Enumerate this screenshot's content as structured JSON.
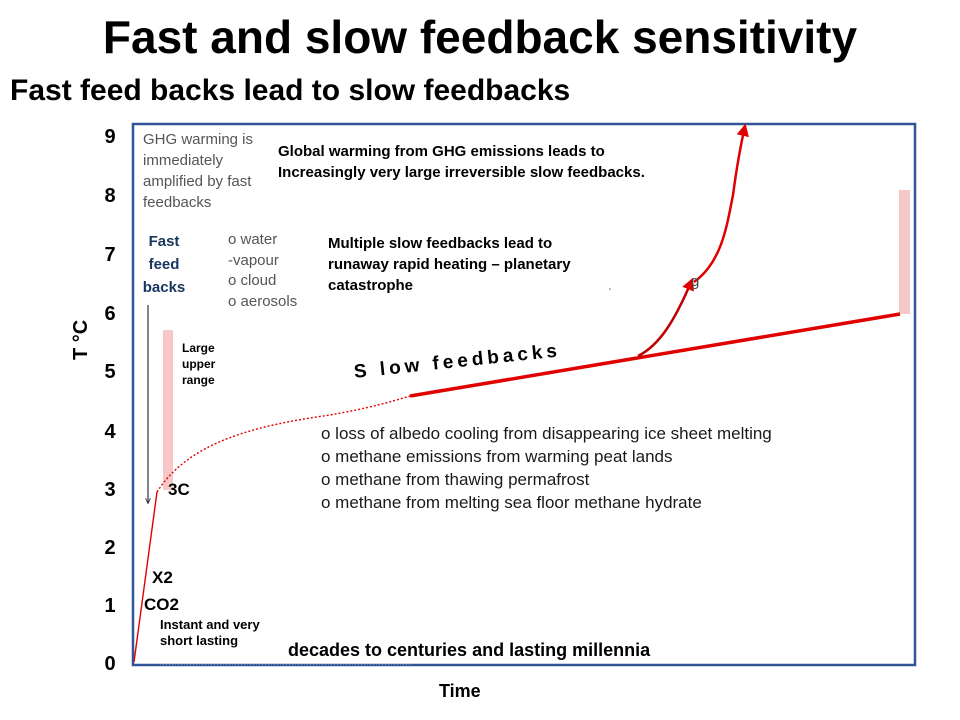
{
  "title": "Fast and slow feedback sensitivity",
  "subtitle": "Fast feed backs lead  to slow feedbacks",
  "y_axis": {
    "label": "T °C",
    "ticks": [
      "0",
      "1",
      "2",
      "3",
      "4",
      "5",
      "6",
      "7",
      "8",
      "9"
    ]
  },
  "x_axis": {
    "label": "Time"
  },
  "annotations": {
    "ghg_note": "GHG warming is immediately amplified by fast feedbacks",
    "fast_feedbacks": "Fast feed backs",
    "fast_items": [
      "o water",
      "-vapour",
      "o cloud",
      "o  aerosols"
    ],
    "large_upper_range": "Large upper range",
    "three_c": "3C",
    "x2": "X2",
    "co2": "CO2",
    "instant": "Instant and  very short lasting",
    "decades": "decades to centuries and  lasting millennia",
    "global_warming": "Global warming  from GHG emissions leads to Increasingly very large irreversible slow feedbacks.",
    "multiple": "Multiple slow feedbacks lead to runaway rapid heating – planetary catastrophe",
    "slow_feedbacks": "S low  feedbacks",
    "g_mark": "g",
    "slow_items": [
      "o loss of albedo cooling from  disappearing ice sheet melting",
      "o methane emissions from warming peat lands",
      "o methane from thawing permafrost",
      "o methane from  melting sea floor methane hydrate"
    ]
  },
  "colors": {
    "frame": "#2F5597",
    "curve": "#E00000",
    "range_bar": "#F8C8C8",
    "fast_feedback_text": "#17365D"
  }
}
